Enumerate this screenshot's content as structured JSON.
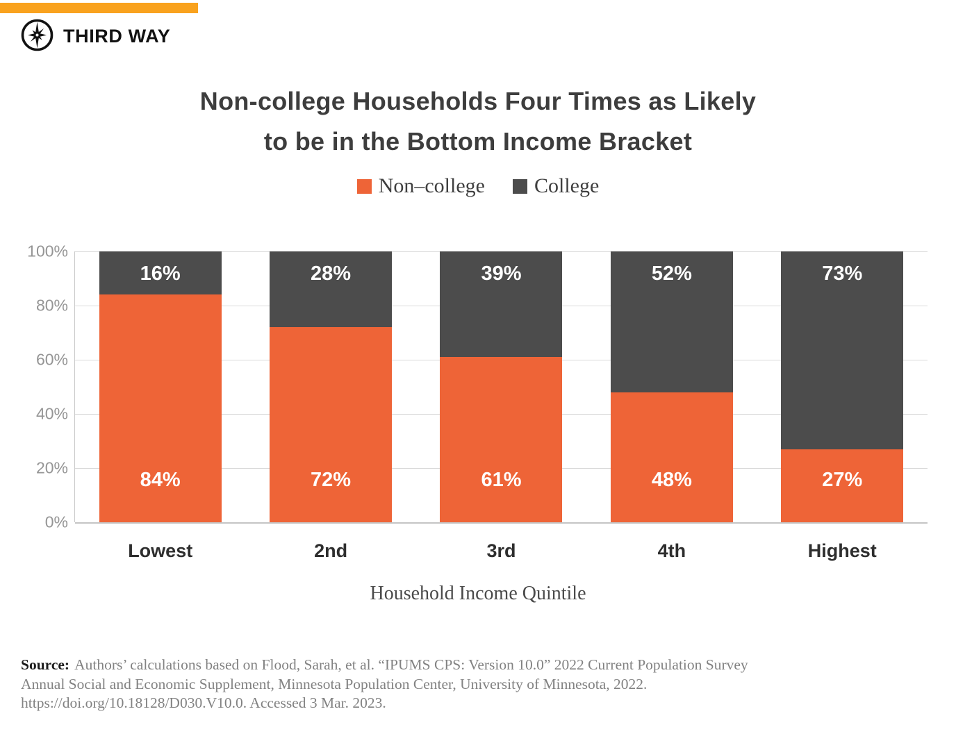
{
  "brand": {
    "name": "THIRD WAY"
  },
  "colors": {
    "banner": "#F9A21E",
    "noncollege": "#EE6437",
    "college": "#4C4C4C",
    "gridline": "#D9D9D9",
    "tick_text": "#959595",
    "title_text": "#3D3D3D"
  },
  "chart_data": {
    "type": "bar",
    "stacked": true,
    "title": "Non-college Households Four Times as Likely to be in the Bottom Income Bracket",
    "title_lines": [
      "Non-college Households Four Times as Likely",
      "to be in the Bottom Income Bracket"
    ],
    "categories": [
      "Lowest",
      "2nd",
      "3rd",
      "4th",
      "Highest"
    ],
    "series": [
      {
        "name": "Non–college",
        "color": "#EE6437",
        "values": [
          84,
          72,
          61,
          48,
          27
        ]
      },
      {
        "name": "College",
        "color": "#4C4C4C",
        "values": [
          16,
          28,
          39,
          52,
          73
        ]
      }
    ],
    "value_suffix": "%",
    "xlabel": "Household Income Quintile",
    "ylabel": "",
    "ylim": [
      0,
      100
    ],
    "yticks": [
      "0%",
      "20%",
      "40%",
      "60%",
      "80%",
      "100%"
    ],
    "grid": "horizontal",
    "legend_position": "top"
  },
  "source": {
    "label": "Source:",
    "line1": "Authors’ calculations based on Flood, Sarah, et al. “IPUMS CPS: Version 10.0” 2022 Current Population Survey",
    "line2": "Annual Social and Economic Supplement, Minnesota Population Center, University of Minnesota, 2022.",
    "line3": "https://doi.org/10.18128/D030.V10.0. Accessed 3 Mar. 2023."
  }
}
